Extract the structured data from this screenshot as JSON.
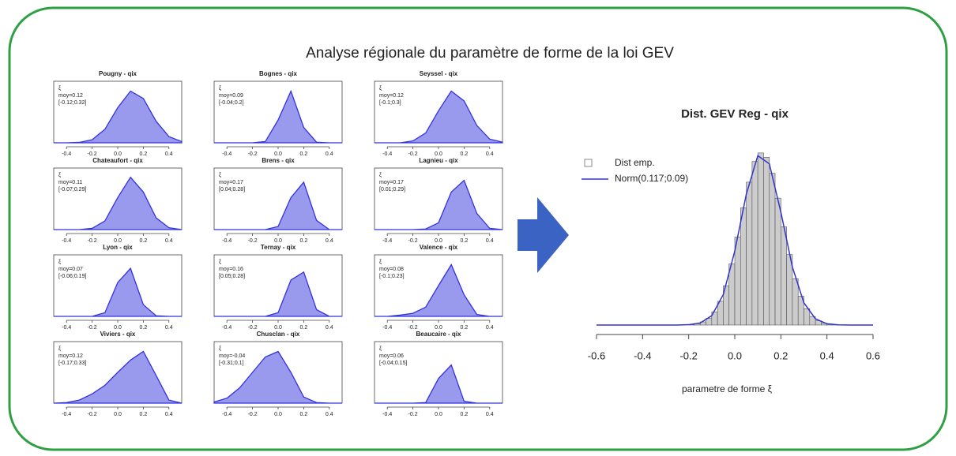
{
  "title": "Analyse régionale du paramètre de forme de la loi GEV",
  "chart_data": [
    {
      "type": "area",
      "title": "Pougny - qix",
      "annotations": [
        "ξ",
        "moy=0.12",
        "[-0.12;0.32]"
      ],
      "color": "#3333dd",
      "x": [
        -0.5,
        -0.4,
        -0.3,
        -0.2,
        -0.1,
        0,
        0.1,
        0.2,
        0.3,
        0.4,
        0.5
      ],
      "values": [
        0,
        0,
        0.007,
        0.05,
        0.22,
        0.57,
        0.84,
        0.72,
        0.35,
        0.1,
        0.02
      ],
      "xlim": [
        -0.5,
        0.5
      ],
      "ylim": [
        0,
        1
      ],
      "xticks": [
        -0.4,
        -0.2,
        {
          "value": 0,
          "label": "0.0"
        },
        0.2,
        0.4
      ]
    },
    {
      "type": "area",
      "title": "Bognes - qix",
      "annotations": [
        "ξ",
        "moy=0.09",
        "[-0.04;0.2]"
      ],
      "color": "#3333dd",
      "x": [
        -0.5,
        -0.4,
        -0.3,
        -0.2,
        -0.1,
        0,
        0.1,
        0.2,
        0.3,
        0.4,
        0.5
      ],
      "values": [
        0,
        0,
        0,
        0,
        0.02,
        0.37,
        0.84,
        0.25,
        0.01,
        0,
        0
      ],
      "xlim": [
        -0.5,
        0.5
      ],
      "ylim": [
        0,
        1
      ],
      "xticks": [
        -0.4,
        -0.2,
        {
          "value": 0,
          "label": "0.0"
        },
        0.2,
        0.4
      ]
    },
    {
      "type": "area",
      "title": "Seyssel - qix",
      "annotations": [
        "ξ",
        "moy=0.12",
        "[-0.1;0.3]"
      ],
      "color": "#3333dd",
      "x": [
        -0.5,
        -0.4,
        -0.3,
        -0.2,
        -0.1,
        0,
        0.1,
        0.2,
        0.3,
        0.4,
        0.5
      ],
      "values": [
        0,
        0,
        0,
        0.03,
        0.16,
        0.52,
        0.84,
        0.68,
        0.28,
        0.06,
        0.01
      ],
      "xlim": [
        -0.5,
        0.5
      ],
      "ylim": [
        0,
        1
      ],
      "xticks": [
        -0.4,
        -0.2,
        {
          "value": 0,
          "label": "0.0"
        },
        0.2,
        0.4
      ]
    },
    {
      "type": "area",
      "title": "Chateaufort - qix",
      "annotations": [
        "ξ",
        "moy=0.11",
        "[-0.07;0.29]"
      ],
      "color": "#3333dd",
      "x": [
        -0.5,
        -0.4,
        -0.3,
        -0.2,
        -0.1,
        0,
        0.1,
        0.2,
        0.3,
        0.4,
        0.5
      ],
      "values": [
        0,
        0,
        0,
        0.02,
        0.14,
        0.52,
        0.85,
        0.61,
        0.19,
        0.03,
        0
      ],
      "xlim": [
        -0.5,
        0.5
      ],
      "ylim": [
        0,
        1
      ],
      "xticks": [
        -0.4,
        -0.2,
        {
          "value": 0,
          "label": "0.0"
        },
        0.2,
        0.4
      ]
    },
    {
      "type": "area",
      "title": "Brens - qix",
      "annotations": [
        "ξ",
        "moy=0.17",
        "[0.04;0.28]"
      ],
      "color": "#3333dd",
      "x": [
        -0.5,
        -0.4,
        -0.3,
        -0.2,
        -0.1,
        0,
        0.1,
        0.2,
        0.3,
        0.4,
        0.5
      ],
      "values": [
        0,
        0,
        0,
        0,
        0,
        0.05,
        0.52,
        0.77,
        0.15,
        0,
        0
      ],
      "xlim": [
        -0.5,
        0.5
      ],
      "ylim": [
        0,
        1
      ],
      "xticks": [
        -0.4,
        -0.2,
        {
          "value": 0,
          "label": "0.0"
        },
        0.2,
        0.4
      ]
    },
    {
      "type": "area",
      "title": "Lagnieu - qix",
      "annotations": [
        "ξ",
        "moy=0.17",
        "[0.01;0.29]"
      ],
      "color": "#3333dd",
      "x": [
        -0.5,
        -0.4,
        -0.3,
        -0.2,
        -0.1,
        0,
        0.1,
        0.2,
        0.3,
        0.4,
        0.5
      ],
      "values": [
        0,
        0,
        0,
        0,
        0.01,
        0.11,
        0.61,
        0.8,
        0.26,
        0.02,
        0
      ],
      "xlim": [
        -0.5,
        0.5
      ],
      "ylim": [
        0,
        1
      ],
      "xticks": [
        -0.4,
        -0.2,
        {
          "value": 0,
          "label": "0.0"
        },
        0.2,
        0.4
      ]
    },
    {
      "type": "area",
      "title": "Lyon - qix",
      "annotations": [
        "ξ",
        "moy=0.07",
        "[-0.06;0.19]"
      ],
      "color": "#3333dd",
      "x": [
        -0.5,
        -0.4,
        -0.3,
        -0.2,
        -0.1,
        0,
        0.1,
        0.2,
        0.3,
        0.4,
        0.5
      ],
      "values": [
        0,
        0,
        0,
        0,
        0.06,
        0.55,
        0.78,
        0.19,
        0.01,
        0,
        0
      ],
      "xlim": [
        -0.5,
        0.5
      ],
      "ylim": [
        0,
        1
      ],
      "xticks": [
        -0.4,
        -0.2,
        {
          "value": 0,
          "label": "0.0"
        },
        0.2,
        0.4
      ]
    },
    {
      "type": "area",
      "title": "Ternay - qix",
      "annotations": [
        "ξ",
        "moy=0.16",
        "[0.05;0.28]"
      ],
      "color": "#3333dd",
      "x": [
        -0.5,
        -0.4,
        -0.3,
        -0.2,
        -0.1,
        0,
        0.1,
        0.2,
        0.3,
        0.4,
        0.5
      ],
      "values": [
        0,
        0,
        0,
        0,
        0,
        0.06,
        0.59,
        0.72,
        0.11,
        0,
        0
      ],
      "xlim": [
        -0.5,
        0.5
      ],
      "ylim": [
        0,
        1
      ],
      "xticks": [
        -0.4,
        -0.2,
        {
          "value": 0,
          "label": "0.0"
        },
        0.2,
        0.4
      ]
    },
    {
      "type": "area",
      "title": "Valence - qix",
      "annotations": [
        "ξ",
        "moy=0.08",
        "[-0.1;0.23]"
      ],
      "color": "#3333dd",
      "x": [
        -0.5,
        -0.4,
        -0.3,
        -0.2,
        -0.1,
        0,
        0.1,
        0.2,
        0.3,
        0.4,
        0.5
      ],
      "values": [
        0,
        0,
        0.02,
        0.05,
        0.15,
        0.5,
        0.84,
        0.35,
        0.03,
        0,
        0
      ],
      "xlim": [
        -0.5,
        0.5
      ],
      "ylim": [
        0,
        1
      ],
      "xticks": [
        -0.4,
        -0.2,
        {
          "value": 0,
          "label": "0.0"
        },
        0.2,
        0.4
      ]
    },
    {
      "type": "area",
      "title": "Viviers - qix",
      "annotations": [
        "ξ",
        "moy=0.12",
        "[-0.17;0.33]"
      ],
      "color": "#3333dd",
      "x": [
        -0.5,
        -0.4,
        -0.3,
        -0.2,
        -0.1,
        0,
        0.1,
        0.2,
        0.3,
        0.4,
        0.5
      ],
      "values": [
        0,
        0.01,
        0.05,
        0.15,
        0.29,
        0.5,
        0.7,
        0.84,
        0.45,
        0.05,
        0
      ],
      "xlim": [
        -0.5,
        0.5
      ],
      "ylim": [
        0,
        1
      ],
      "xticks": [
        -0.4,
        -0.2,
        {
          "value": 0,
          "label": "0.0"
        },
        0.2,
        0.4
      ]
    },
    {
      "type": "area",
      "title": "Chusclan - qix",
      "annotations": [
        "ξ",
        "moy=-0.04",
        "[-0.31;0.1]"
      ],
      "color": "#3333dd",
      "x": [
        -0.5,
        -0.4,
        -0.3,
        -0.2,
        -0.1,
        0,
        0.1,
        0.2,
        0.3,
        0.4,
        0.5
      ],
      "values": [
        0.02,
        0.08,
        0.25,
        0.5,
        0.75,
        0.84,
        0.5,
        0.1,
        0.01,
        0,
        0
      ],
      "xlim": [
        -0.5,
        0.5
      ],
      "ylim": [
        0,
        1
      ],
      "xticks": [
        -0.4,
        -0.2,
        {
          "value": 0,
          "label": "0.0"
        },
        0.2,
        0.4
      ]
    },
    {
      "type": "area",
      "title": "Beaucaire - qix",
      "annotations": [
        "ξ",
        "moy=0.06",
        "[-0.04;0.15]"
      ],
      "color": "#3333dd",
      "x": [
        -0.5,
        -0.4,
        -0.3,
        -0.2,
        -0.1,
        0,
        0.1,
        0.2,
        0.3,
        0.4,
        0.5
      ],
      "values": [
        0,
        0,
        0,
        0,
        0.01,
        0.4,
        0.62,
        0.03,
        0,
        0,
        0
      ],
      "xlim": [
        -0.5,
        0.5
      ],
      "ylim": [
        0,
        1
      ],
      "xticks": [
        -0.4,
        -0.2,
        {
          "value": 0,
          "label": "0.0"
        },
        0.2,
        0.4
      ]
    },
    {
      "type": "histogram",
      "title": "Dist. GEV Reg - qix",
      "xlabel": "parametre de forme ξ",
      "xlim": [
        -0.6,
        0.6
      ],
      "ylim": [
        0,
        4.6
      ],
      "xticks": [
        -0.6,
        -0.4,
        -0.2,
        {
          "value": 0,
          "label": "0.0"
        },
        0.2,
        0.4,
        0.6
      ],
      "bins": [
        -0.2,
        -0.175,
        -0.15,
        -0.125,
        -0.1,
        -0.075,
        -0.05,
        -0.025,
        0,
        0.025,
        0.05,
        0.075,
        0.1,
        0.125,
        0.15,
        0.175,
        0.2,
        0.225,
        0.25,
        0.275,
        0.3,
        0.325,
        0.35,
        0.375,
        0.4,
        0.425,
        0.45
      ],
      "series": [
        {
          "name": "Dist emp.",
          "color": "#cccccc",
          "values": [
            0.014,
            0.035,
            0.081,
            0.17,
            0.34,
            0.61,
            1.01,
            1.57,
            2.26,
            3.01,
            3.67,
            4.2,
            4.42,
            4.31,
            3.9,
            3.26,
            2.52,
            1.81,
            1.19,
            0.74,
            0.42,
            0.22,
            0.11,
            0.047,
            0.02,
            0.008
          ]
        },
        {
          "name": "Norm(0.117;0.09)",
          "color": "#3333cc",
          "x": [
            -0.6,
            -0.55,
            -0.5,
            -0.45,
            -0.4,
            -0.35,
            -0.3,
            -0.25,
            -0.2,
            -0.15,
            -0.1,
            -0.05,
            0,
            0.05,
            0.1,
            0.15,
            0.2,
            0.25,
            0.3,
            0.35,
            0.4,
            0.45,
            0.5,
            0.55,
            0.6
          ],
          "values": [
            0,
            0,
            0,
            0,
            0,
            0,
            0,
            0.001,
            0.009,
            0.054,
            0.24,
            0.78,
            1.9,
            3.36,
            4.35,
            4.14,
            2.9,
            1.49,
            0.57,
            0.16,
            0.032,
            0.005,
            0,
            0,
            0
          ]
        }
      ]
    }
  ]
}
